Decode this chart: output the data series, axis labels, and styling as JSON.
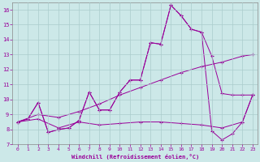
{
  "xlabel": "Windchill (Refroidissement éolien,°C)",
  "ylabel": "",
  "xlim": [
    -0.5,
    23.5
  ],
  "ylim": [
    7,
    16.5
  ],
  "xticks": [
    0,
    1,
    2,
    3,
    4,
    5,
    6,
    7,
    8,
    9,
    10,
    11,
    12,
    13,
    14,
    15,
    16,
    17,
    18,
    19,
    20,
    21,
    22,
    23
  ],
  "yticks": [
    7,
    8,
    9,
    10,
    11,
    12,
    13,
    14,
    15,
    16
  ],
  "bg_color": "#cce8e8",
  "line_color": "#990099",
  "grid_color": "#aacccc",
  "lines": [
    {
      "x": [
        0,
        1,
        2,
        3,
        4,
        5,
        6,
        7,
        8,
        9,
        10,
        11,
        12,
        13,
        14,
        15,
        16,
        17,
        18,
        19,
        20,
        21,
        22,
        23
      ],
      "y": [
        8.5,
        8.7,
        9.8,
        7.8,
        8.0,
        8.1,
        8.6,
        10.5,
        9.3,
        9.3,
        10.5,
        11.3,
        11.3,
        13.8,
        13.7,
        16.3,
        15.6,
        14.7,
        14.5,
        12.9,
        10.4,
        10.3,
        10.3,
        10.3
      ]
    },
    {
      "x": [
        0,
        1,
        2,
        3,
        4,
        5,
        6,
        7,
        8,
        9,
        10,
        11,
        12,
        13,
        14,
        15,
        16,
        17,
        18,
        19,
        20,
        21,
        22,
        23
      ],
      "y": [
        8.5,
        8.7,
        9.8,
        7.8,
        8.0,
        8.1,
        8.6,
        10.5,
        9.3,
        9.3,
        10.5,
        11.3,
        11.3,
        13.8,
        13.7,
        16.3,
        15.6,
        14.7,
        14.5,
        7.9,
        7.3,
        7.7,
        8.5,
        10.3
      ]
    },
    {
      "x": [
        0,
        2,
        4,
        6,
        8,
        10,
        12,
        14,
        16,
        18,
        20,
        22,
        23
      ],
      "y": [
        8.5,
        9.0,
        8.8,
        9.2,
        9.7,
        10.3,
        10.8,
        11.3,
        11.8,
        12.2,
        12.5,
        12.9,
        13.0
      ]
    },
    {
      "x": [
        0,
        2,
        4,
        6,
        8,
        10,
        12,
        14,
        16,
        18,
        20,
        22,
        23
      ],
      "y": [
        8.5,
        8.7,
        8.1,
        8.5,
        8.3,
        8.4,
        8.5,
        8.5,
        8.4,
        8.3,
        8.1,
        8.5,
        10.3
      ]
    }
  ]
}
